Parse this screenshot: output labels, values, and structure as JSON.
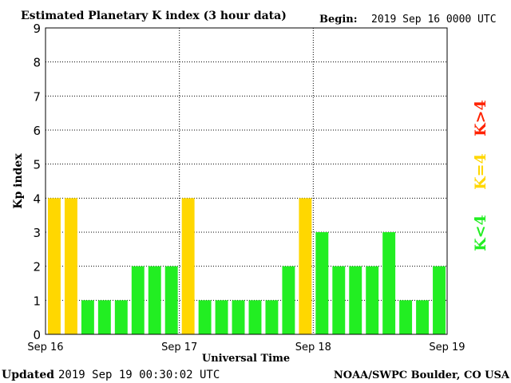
{
  "chart_data": {
    "type": "bar",
    "title": "Estimated Planetary K index (3 hour data)",
    "begin_label": "Begin:",
    "begin_value": "2019 Sep 16 0000 UTC",
    "xlabel": "Universal Time",
    "ylabel": "Kp index",
    "ylim": [
      0,
      9
    ],
    "yticks": [
      "0",
      "1",
      "2",
      "3",
      "4",
      "5",
      "6",
      "7",
      "8",
      "9"
    ],
    "x_tick_labels": [
      "Sep 16",
      "Sep 17",
      "Sep 18",
      "Sep 19"
    ],
    "grid": true,
    "values": [
      4,
      4,
      1,
      1,
      1,
      2,
      2,
      2,
      4,
      1,
      1,
      1,
      1,
      1,
      2,
      4,
      3,
      2,
      2,
      2,
      3,
      1,
      1,
      2
    ],
    "colors": {
      "below_4": "#22ee22",
      "equal_4": "#ffd700",
      "above_4": "#ff2200"
    },
    "legend": {
      "placement": "right",
      "items": [
        {
          "label": "K<4",
          "color": "#22ee22"
        },
        {
          "label": "K=4",
          "color": "#ffd700"
        },
        {
          "label": "K>4",
          "color": "#ff2200"
        }
      ]
    }
  },
  "footer": {
    "updated_label": "Updated",
    "updated_value": "2019 Sep 19 00:30:02 UTC",
    "source": "NOAA/SWPC Boulder, CO USA"
  }
}
